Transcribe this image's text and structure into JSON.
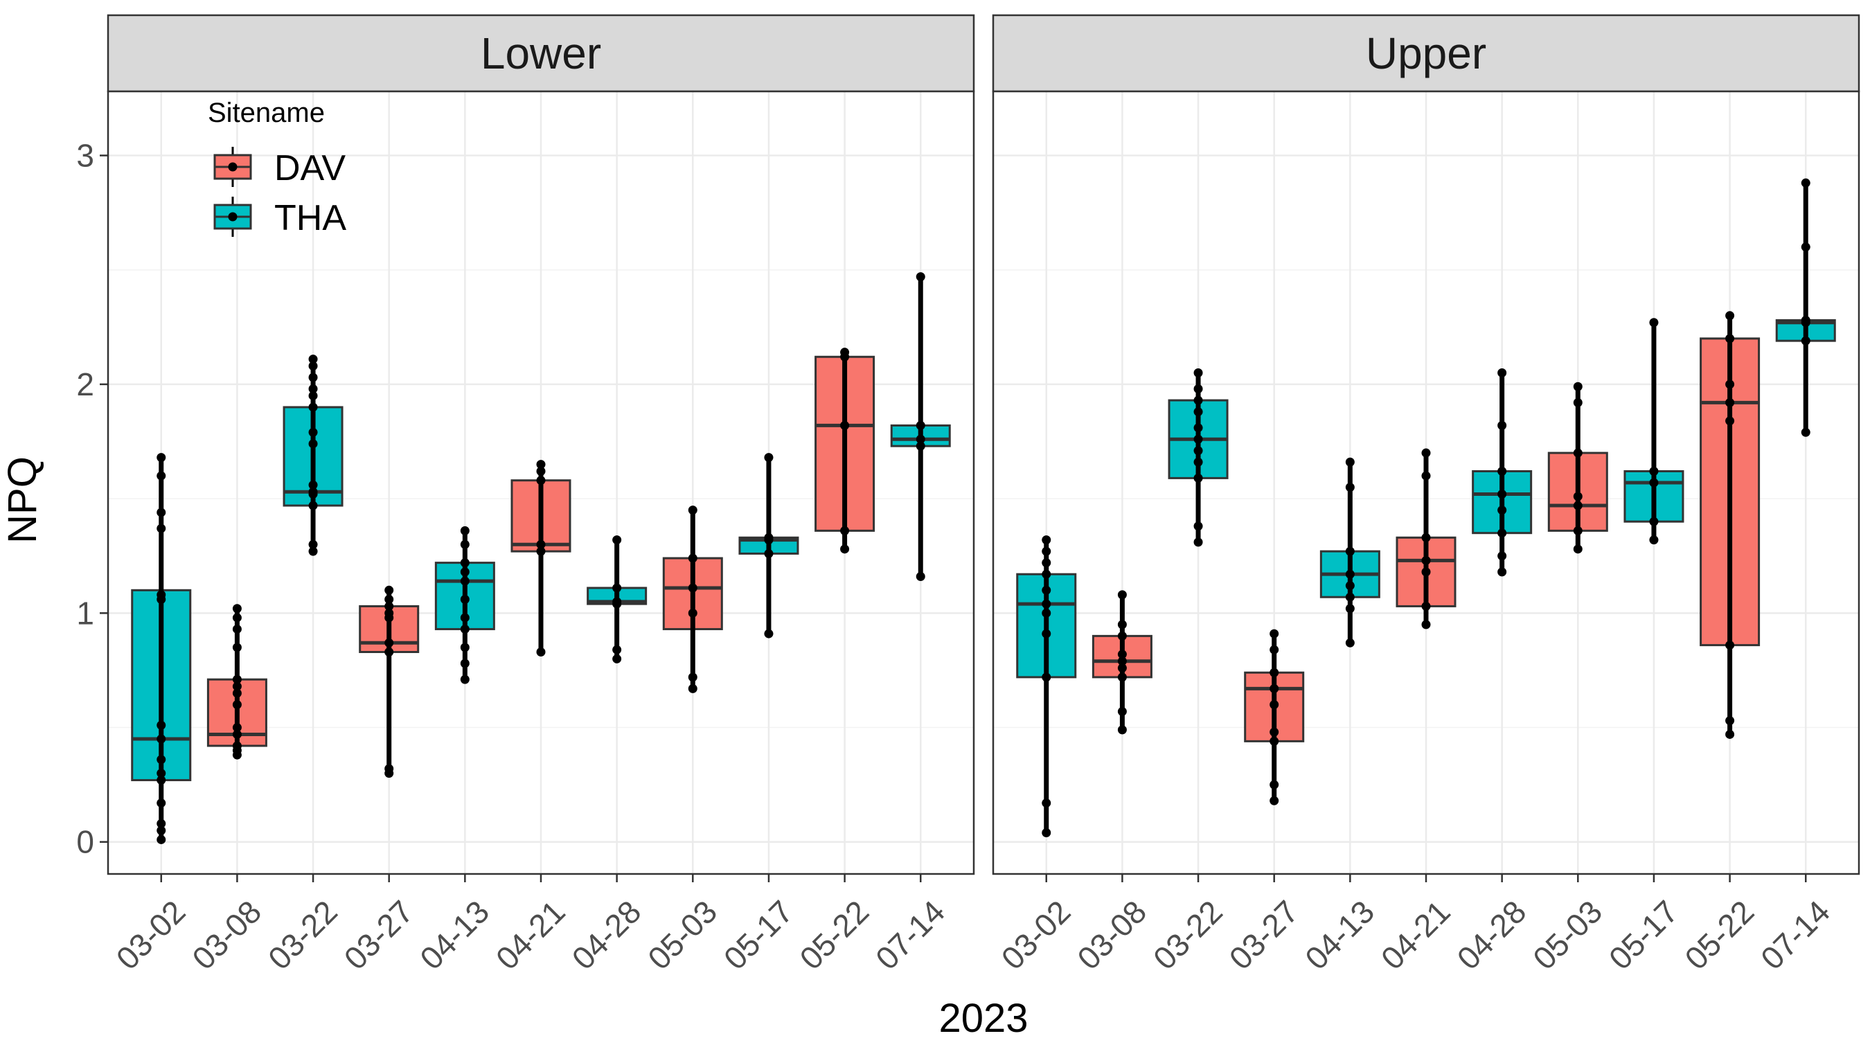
{
  "chart_data": {
    "type": "box",
    "ylabel": "NPQ",
    "xlabel": "2023",
    "ylim": [
      -0.14,
      3.28
    ],
    "yticks": [
      "0",
      "1",
      "2",
      "3"
    ],
    "categories": [
      "03-02",
      "03-08",
      "03-22",
      "03-27",
      "04-13",
      "04-21",
      "04-28",
      "05-03",
      "05-17",
      "05-22",
      "07-14"
    ],
    "grid": true,
    "legend": {
      "title": "Sitename",
      "position": "top-left",
      "entries": [
        {
          "label": "DAV",
          "color": "#F8766D"
        },
        {
          "label": "THA",
          "color": "#00BFC4"
        }
      ]
    },
    "panels": [
      {
        "label": "Lower",
        "boxes": [
          {
            "category": "03-02",
            "site": "THA",
            "min": 0.01,
            "q1": 0.27,
            "median": 0.45,
            "q3": 1.1,
            "max": 1.68,
            "points": [
              0.01,
              0.05,
              0.08,
              0.17,
              0.27,
              0.3,
              0.36,
              0.45,
              0.51,
              1.06,
              1.08,
              1.37,
              1.44,
              1.6,
              1.68
            ]
          },
          {
            "category": "03-08",
            "site": "DAV",
            "min": 0.38,
            "q1": 0.42,
            "median": 0.47,
            "q3": 0.71,
            "max": 1.02,
            "points": [
              0.38,
              0.4,
              0.42,
              0.47,
              0.5,
              0.6,
              0.65,
              0.68,
              0.71,
              0.85,
              0.93,
              0.98,
              1.02
            ]
          },
          {
            "category": "03-22",
            "site": "THA",
            "min": 1.27,
            "q1": 1.47,
            "median": 1.53,
            "q3": 1.9,
            "max": 2.11,
            "points": [
              1.27,
              1.3,
              1.47,
              1.52,
              1.53,
              1.56,
              1.74,
              1.79,
              1.9,
              1.95,
              1.98,
              2.03,
              2.08,
              2.11
            ]
          },
          {
            "category": "03-27",
            "site": "DAV",
            "min": 0.3,
            "q1": 0.83,
            "median": 0.87,
            "q3": 1.03,
            "max": 1.1,
            "points": [
              0.3,
              0.32,
              0.83,
              0.87,
              0.98,
              1.0,
              1.03,
              1.06,
              1.1
            ]
          },
          {
            "category": "04-13",
            "site": "THA",
            "min": 0.71,
            "q1": 0.93,
            "median": 1.14,
            "q3": 1.22,
            "max": 1.36,
            "points": [
              0.71,
              0.78,
              0.85,
              0.93,
              0.98,
              1.06,
              1.14,
              1.18,
              1.22,
              1.3,
              1.36
            ]
          },
          {
            "category": "04-21",
            "site": "DAV",
            "min": 0.83,
            "q1": 1.27,
            "median": 1.3,
            "q3": 1.58,
            "max": 1.65,
            "points": [
              0.83,
              1.27,
              1.3,
              1.58,
              1.62,
              1.65
            ]
          },
          {
            "category": "04-28",
            "site": "THA",
            "min": 0.8,
            "q1": 1.04,
            "median": 1.05,
            "q3": 1.11,
            "max": 1.32,
            "points": [
              0.8,
              0.84,
              1.04,
              1.05,
              1.11,
              1.32
            ]
          },
          {
            "category": "05-03",
            "site": "DAV",
            "min": 0.67,
            "q1": 0.93,
            "median": 1.11,
            "q3": 1.24,
            "max": 1.45,
            "points": [
              0.67,
              0.72,
              1.0,
              1.11,
              1.24,
              1.45
            ]
          },
          {
            "category": "05-17",
            "site": "THA",
            "min": 0.91,
            "q1": 1.26,
            "median": 1.32,
            "q3": 1.33,
            "max": 1.68,
            "points": [
              0.91,
              1.26,
              1.32,
              1.33,
              1.68
            ]
          },
          {
            "category": "05-22",
            "site": "DAV",
            "min": 1.28,
            "q1": 1.36,
            "median": 1.82,
            "q3": 2.12,
            "max": 2.14,
            "points": [
              1.28,
              1.36,
              1.82,
              2.12,
              2.14
            ]
          },
          {
            "category": "07-14",
            "site": "THA",
            "min": 1.16,
            "q1": 1.73,
            "median": 1.76,
            "q3": 1.82,
            "max": 2.47,
            "points": [
              1.16,
              1.73,
              1.76,
              1.82,
              2.47
            ]
          }
        ]
      },
      {
        "label": "Upper",
        "boxes": [
          {
            "category": "03-02",
            "site": "THA",
            "min": 0.04,
            "q1": 0.72,
            "median": 1.04,
            "q3": 1.17,
            "max": 1.32,
            "points": [
              0.04,
              0.17,
              0.72,
              0.91,
              1.0,
              1.04,
              1.1,
              1.17,
              1.22,
              1.27,
              1.32
            ]
          },
          {
            "category": "03-08",
            "site": "DAV",
            "min": 0.49,
            "q1": 0.72,
            "median": 0.79,
            "q3": 0.9,
            "max": 1.08,
            "points": [
              0.49,
              0.57,
              0.72,
              0.76,
              0.79,
              0.82,
              0.9,
              0.95,
              1.08
            ]
          },
          {
            "category": "03-22",
            "site": "THA",
            "min": 1.31,
            "q1": 1.59,
            "median": 1.76,
            "q3": 1.93,
            "max": 2.05,
            "points": [
              1.31,
              1.38,
              1.59,
              1.66,
              1.71,
              1.76,
              1.81,
              1.88,
              1.93,
              1.98,
              2.05
            ]
          },
          {
            "category": "03-27",
            "site": "DAV",
            "min": 0.18,
            "q1": 0.44,
            "median": 0.67,
            "q3": 0.74,
            "max": 0.91,
            "points": [
              0.18,
              0.25,
              0.44,
              0.48,
              0.6,
              0.67,
              0.74,
              0.84,
              0.91
            ]
          },
          {
            "category": "04-13",
            "site": "THA",
            "min": 0.87,
            "q1": 1.07,
            "median": 1.17,
            "q3": 1.27,
            "max": 1.66,
            "points": [
              0.87,
              1.02,
              1.07,
              1.12,
              1.17,
              1.27,
              1.55,
              1.66
            ]
          },
          {
            "category": "04-21",
            "site": "DAV",
            "min": 0.95,
            "q1": 1.03,
            "median": 1.23,
            "q3": 1.33,
            "max": 1.7,
            "points": [
              0.95,
              1.03,
              1.18,
              1.23,
              1.33,
              1.6,
              1.7
            ]
          },
          {
            "category": "04-28",
            "site": "THA",
            "min": 1.18,
            "q1": 1.35,
            "median": 1.52,
            "q3": 1.62,
            "max": 2.05,
            "points": [
              1.18,
              1.25,
              1.35,
              1.45,
              1.52,
              1.62,
              1.82,
              2.05
            ]
          },
          {
            "category": "05-03",
            "site": "DAV",
            "min": 1.28,
            "q1": 1.36,
            "median": 1.47,
            "q3": 1.7,
            "max": 1.99,
            "points": [
              1.28,
              1.36,
              1.47,
              1.51,
              1.7,
              1.92,
              1.99
            ]
          },
          {
            "category": "05-17",
            "site": "THA",
            "min": 1.32,
            "q1": 1.4,
            "median": 1.57,
            "q3": 1.62,
            "max": 2.27,
            "points": [
              1.32,
              1.4,
              1.57,
              1.62,
              2.27
            ]
          },
          {
            "category": "05-22",
            "site": "DAV",
            "min": 0.47,
            "q1": 0.86,
            "median": 1.92,
            "q3": 2.2,
            "max": 2.3,
            "points": [
              0.47,
              0.53,
              0.86,
              1.84,
              1.92,
              2.0,
              2.2,
              2.3
            ]
          },
          {
            "category": "07-14",
            "site": "THA",
            "min": 1.79,
            "q1": 2.19,
            "median": 2.27,
            "q3": 2.28,
            "max": 2.88,
            "points": [
              1.79,
              2.19,
              2.27,
              2.28,
              2.6,
              2.88
            ]
          }
        ]
      }
    ]
  }
}
